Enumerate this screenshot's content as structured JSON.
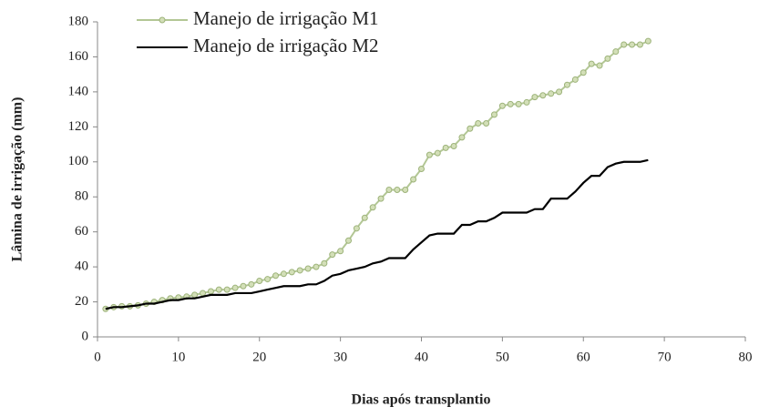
{
  "chart_data": {
    "type": "line",
    "xlabel": "Dias após transplantio",
    "ylabel": "Lâmina de irrigação (mm)",
    "x": [
      1,
      2,
      3,
      4,
      5,
      6,
      7,
      8,
      9,
      10,
      11,
      12,
      13,
      14,
      15,
      16,
      17,
      18,
      19,
      20,
      21,
      22,
      23,
      24,
      25,
      26,
      27,
      28,
      29,
      30,
      31,
      32,
      33,
      34,
      35,
      36,
      37,
      38,
      39,
      40,
      41,
      42,
      43,
      44,
      45,
      46,
      47,
      48,
      49,
      50,
      51,
      52,
      53,
      54,
      55,
      56,
      57,
      58,
      59,
      60,
      61,
      62,
      63,
      64,
      65,
      66,
      67,
      68
    ],
    "series": [
      {
        "name": "Manejo de irrigação M1",
        "color": "#b3c795",
        "marker": true,
        "values": [
          16,
          17,
          17.5,
          17.5,
          18,
          19,
          20,
          21,
          22,
          22.5,
          23,
          24,
          25,
          26,
          27,
          27,
          28,
          29,
          30,
          32,
          33,
          35,
          36,
          37,
          38,
          39,
          40,
          42,
          47,
          49,
          55,
          62,
          68,
          74,
          79,
          84,
          84,
          84,
          90,
          96,
          104,
          105,
          108,
          109,
          114,
          119,
          122,
          122,
          127,
          132,
          133,
          133,
          134,
          137,
          138,
          139,
          140,
          144,
          147,
          151,
          156,
          155,
          159,
          163,
          167,
          167,
          167,
          169
        ]
      },
      {
        "name": "Manejo de irrigação M2",
        "color": "#000000",
        "marker": false,
        "values": [
          16,
          17,
          17,
          17.5,
          18,
          19,
          19,
          20,
          21,
          21,
          22,
          22,
          23,
          24,
          24,
          24,
          25,
          25,
          25,
          26,
          27,
          28,
          29,
          29,
          29,
          30,
          30,
          32,
          35,
          36,
          38,
          39,
          40,
          42,
          43,
          45,
          45,
          45,
          50,
          54,
          58,
          59,
          59,
          59,
          64,
          64,
          66,
          66,
          68,
          71,
          71,
          71,
          71,
          73,
          73,
          79,
          79,
          79,
          83,
          88,
          92,
          92,
          97,
          99,
          100,
          100,
          100,
          101
        ]
      }
    ],
    "xlim": [
      0,
      80
    ],
    "xticks": [
      0,
      10,
      20,
      30,
      40,
      50,
      60,
      70,
      80
    ],
    "ylim": [
      0,
      180
    ],
    "yticks": [
      0,
      20,
      40,
      60,
      80,
      100,
      120,
      140,
      160,
      180
    ],
    "grid": false,
    "legend": "top-left"
  }
}
